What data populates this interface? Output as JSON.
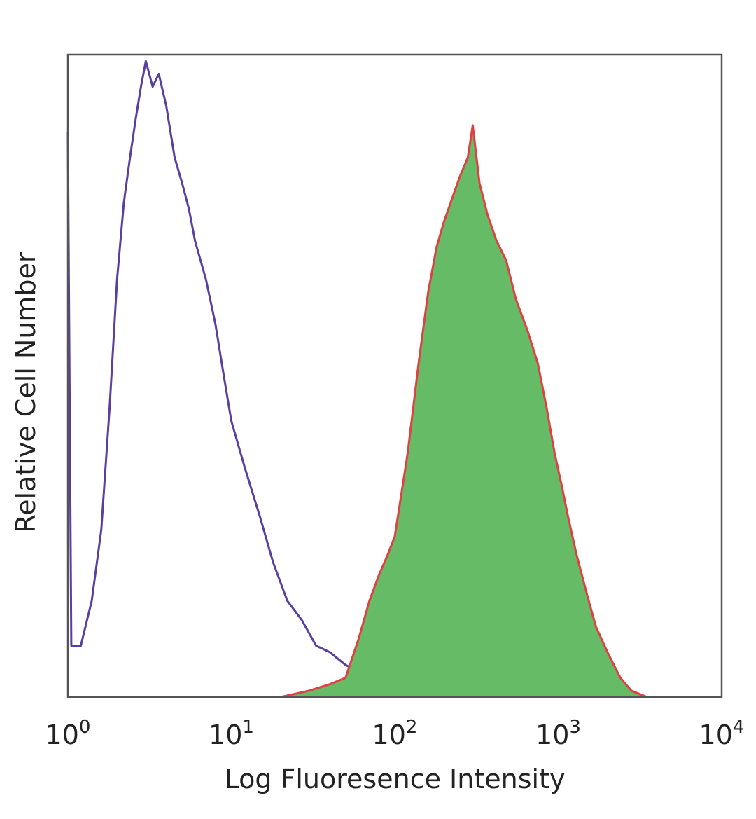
{
  "chart_data": {
    "type": "area",
    "xlabel": "Log Fluoresence Intensity",
    "ylabel": "Relative Cell Number",
    "x_scale": "log",
    "xlim": [
      1,
      10000
    ],
    "ylim": [
      0,
      100
    ],
    "x_tick_labels": [
      {
        "base": "10",
        "exp": "0"
      },
      {
        "base": "10",
        "exp": "1"
      },
      {
        "base": "10",
        "exp": "2"
      },
      {
        "base": "10",
        "exp": "3"
      },
      {
        "base": "10",
        "exp": "4"
      }
    ],
    "grid": false,
    "legend": "none",
    "series": [
      {
        "style": "outline",
        "color": "#5a3fa0",
        "points": [
          [
            1,
            88
          ],
          [
            1.05,
            8
          ],
          [
            1.2,
            8
          ],
          [
            1.4,
            15
          ],
          [
            1.6,
            26
          ],
          [
            1.8,
            45
          ],
          [
            2.0,
            65
          ],
          [
            2.2,
            77
          ],
          [
            2.4,
            84
          ],
          [
            2.6,
            90
          ],
          [
            2.8,
            95
          ],
          [
            3.0,
            99
          ],
          [
            3.3,
            95
          ],
          [
            3.6,
            97
          ],
          [
            4.0,
            92
          ],
          [
            4.5,
            84
          ],
          [
            5.0,
            80
          ],
          [
            5.5,
            76
          ],
          [
            6.0,
            71
          ],
          [
            7.0,
            65
          ],
          [
            8.0,
            58
          ],
          [
            9.0,
            50
          ],
          [
            10,
            43
          ],
          [
            12,
            36
          ],
          [
            15,
            28
          ],
          [
            18,
            21
          ],
          [
            22,
            15
          ],
          [
            27,
            12
          ],
          [
            33,
            8
          ],
          [
            40,
            7
          ],
          [
            50,
            5
          ],
          [
            60,
            4
          ],
          [
            80,
            3
          ],
          [
            100,
            2.5
          ],
          [
            130,
            2
          ],
          [
            170,
            1.5
          ],
          [
            220,
            1
          ],
          [
            300,
            0.5
          ],
          [
            400,
            0
          ]
        ]
      },
      {
        "style": "filled",
        "color": "#e04040",
        "fill": "#66bb66",
        "points": [
          [
            20,
            0
          ],
          [
            30,
            1
          ],
          [
            40,
            2
          ],
          [
            50,
            3
          ],
          [
            60,
            9
          ],
          [
            70,
            15
          ],
          [
            80,
            19
          ],
          [
            90,
            22
          ],
          [
            100,
            25
          ],
          [
            120,
            38
          ],
          [
            140,
            52
          ],
          [
            160,
            63
          ],
          [
            180,
            70
          ],
          [
            200,
            74
          ],
          [
            220,
            77
          ],
          [
            250,
            81
          ],
          [
            280,
            84
          ],
          [
            300,
            89
          ],
          [
            330,
            80
          ],
          [
            370,
            75
          ],
          [
            420,
            71
          ],
          [
            480,
            68
          ],
          [
            550,
            62
          ],
          [
            650,
            57
          ],
          [
            750,
            52
          ],
          [
            850,
            45
          ],
          [
            950,
            38
          ],
          [
            1050,
            33
          ],
          [
            1150,
            28
          ],
          [
            1300,
            22
          ],
          [
            1500,
            16
          ],
          [
            1700,
            11
          ],
          [
            2000,
            7
          ],
          [
            2400,
            3
          ],
          [
            2800,
            1
          ],
          [
            3500,
            0
          ]
        ]
      }
    ]
  }
}
